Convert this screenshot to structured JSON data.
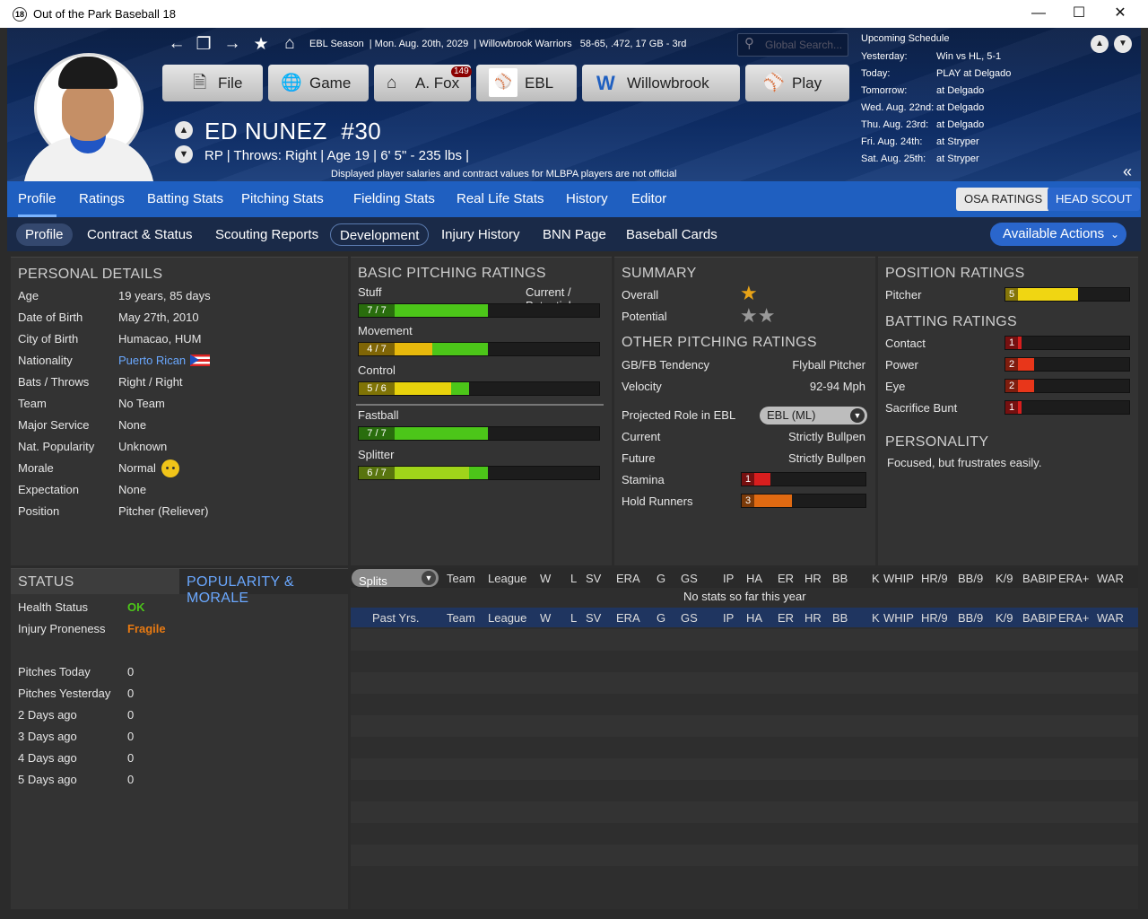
{
  "window": {
    "title": "Out of the Park Baseball 18",
    "icon_text": "18",
    "minimize": "—",
    "maximize": "☐",
    "close": "✕"
  },
  "topline": {
    "season": "EBL Season",
    "date": "Mon. Aug. 20th, 2029",
    "team": "Willowbrook Warriors",
    "record": "58-65, .472, 17 GB - 3rd"
  },
  "search": {
    "placeholder": "Global Search..."
  },
  "menu": [
    {
      "label": "File",
      "icon": "file-icon"
    },
    {
      "label": "Game",
      "icon": "globe-icon"
    },
    {
      "label": "A. Fox",
      "icon": "home-icon",
      "badge": "149"
    },
    {
      "label": "EBL",
      "icon": "league-logo"
    },
    {
      "label": "Willowbrook",
      "icon": "team-logo"
    },
    {
      "label": "Play",
      "icon": "baseball-icon"
    }
  ],
  "player": {
    "name": "ED NUNEZ",
    "number": "#30",
    "info": "RP | Throws: Right  |  Age 19  |  6' 5\" - 235 lbs  |",
    "disclaimer": "Displayed player salaries and contract values for MLBPA players are not official"
  },
  "schedule": {
    "title": "Upcoming Schedule",
    "rows": [
      {
        "day": "Yesterday:",
        "value": "Win vs HL, 5-1"
      },
      {
        "day": "Today:",
        "value": "PLAY at Delgado"
      },
      {
        "day": "Tomorrow:",
        "value": "at Delgado"
      },
      {
        "day": "Wed. Aug. 22nd:",
        "value": "at Delgado"
      },
      {
        "day": "Thu. Aug. 23rd:",
        "value": "at Delgado"
      },
      {
        "day": "Fri. Aug. 24th:",
        "value": "at Stryper"
      },
      {
        "day": "Sat. Aug. 25th:",
        "value": "at Stryper"
      }
    ]
  },
  "tabs1": [
    "Profile",
    "Ratings",
    "Batting Stats",
    "Pitching Stats",
    "Fielding Stats",
    "Real Life Stats",
    "History",
    "Editor"
  ],
  "tabs1_right": {
    "osa": "OSA RATINGS",
    "scout": "HEAD SCOUT"
  },
  "tabs2": [
    "Profile",
    "Contract & Status",
    "Scouting Reports",
    "Development",
    "Injury History",
    "BNN Page",
    "Baseball Cards"
  ],
  "available_actions": "Available Actions",
  "personal": {
    "title": "PERSONAL DETAILS",
    "rows": [
      {
        "k": "Age",
        "v": "19 years, 85 days"
      },
      {
        "k": "Date of Birth",
        "v": "May 27th, 2010"
      },
      {
        "k": "City of Birth",
        "v": "Humacao, HUM"
      },
      {
        "k": "Nationality",
        "v": "Puerto Rican"
      },
      {
        "k": "Bats / Throws",
        "v": "Right / Right"
      },
      {
        "k": "Team",
        "v": "No Team"
      },
      {
        "k": "Major Service",
        "v": "None"
      },
      {
        "k": "Nat. Popularity",
        "v": "Unknown"
      },
      {
        "k": "Morale",
        "v": "Normal"
      },
      {
        "k": "Expectation",
        "v": "None"
      },
      {
        "k": "Position",
        "v": "Pitcher (Reliever)"
      }
    ]
  },
  "basic_pitching": {
    "title": "BASIC PITCHING RATINGS",
    "legend": "Current / Potential",
    "rows": [
      {
        "name": "Stuff",
        "text": "7 / 7",
        "current": 7,
        "potential": 7,
        "color": "#4cc619"
      },
      {
        "name": "Movement",
        "text": "4 / 7",
        "current": 4,
        "potential": 7,
        "color": "#e8b90c"
      },
      {
        "name": "Control",
        "text": "5 / 6",
        "current": 5,
        "potential": 6,
        "color": "#e8d20c"
      },
      {
        "name": "Fastball",
        "text": "7 / 7",
        "current": 7,
        "potential": 7,
        "color": "#4cc619"
      },
      {
        "name": "Splitter",
        "text": "6 / 7",
        "current": 6,
        "potential": 7,
        "color": "#a0d41a"
      }
    ]
  },
  "summary": {
    "title": "SUMMARY",
    "overall_label": "Overall",
    "overall_stars": "★",
    "potential_label": "Potential",
    "potential_stars": "★★"
  },
  "other_pitching": {
    "title": "OTHER PITCHING RATINGS",
    "rows": [
      {
        "k": "GB/FB Tendency",
        "v": "Flyball Pitcher"
      },
      {
        "k": "Velocity",
        "v": "92-94 Mph"
      }
    ],
    "role_label": "Projected Role in EBL",
    "role_select": "EBL (ML)",
    "current_label": "Current",
    "current_value": "Strictly Bullpen",
    "future_label": "Future",
    "future_value": "Strictly Bullpen",
    "stamina_label": "Stamina",
    "stamina": "1",
    "hold_label": "Hold Runners",
    "hold": "3"
  },
  "position_ratings": {
    "title": "POSITION RATINGS",
    "label": "Pitcher",
    "value": "5"
  },
  "batting_ratings": {
    "title": "BATTING RATINGS",
    "rows": [
      {
        "k": "Contact",
        "v": "1"
      },
      {
        "k": "Power",
        "v": "2"
      },
      {
        "k": "Eye",
        "v": "2"
      },
      {
        "k": "Sacrifice Bunt",
        "v": "1"
      }
    ]
  },
  "personality": {
    "title": "PERSONALITY",
    "text": "Focused, but frustrates easily."
  },
  "status": {
    "tab1": "STATUS",
    "tab2": "POPULARITY & MORALE",
    "health_label": "Health Status",
    "health": "OK",
    "injury_label": "Injury Proneness",
    "injury": "Fragile",
    "rows": [
      {
        "k": "Pitches Today",
        "v": "0"
      },
      {
        "k": "Pitches Yesterday",
        "v": "0"
      },
      {
        "k": "2 Days ago",
        "v": "0"
      },
      {
        "k": "3 Days ago",
        "v": "0"
      },
      {
        "k": "4 Days ago",
        "v": "0"
      },
      {
        "k": "5 Days ago",
        "v": "0"
      }
    ]
  },
  "stats": {
    "splits": "Splits",
    "cols": [
      "Team",
      "League",
      "W",
      "L",
      "SV",
      "ERA",
      "G",
      "GS",
      "IP",
      "HA",
      "ER",
      "HR",
      "BB",
      "K",
      "WHIP",
      "HR/9",
      "BB/9",
      "K/9",
      "BABIP",
      "ERA+",
      "WAR"
    ],
    "empty": "No stats so far this year",
    "past": "Past Yrs."
  },
  "colors": {
    "accent": "#1f5fc0",
    "green": "#4cc619",
    "red": "#d81e1e",
    "orange": "#e06a12",
    "yellow": "#f0d612"
  }
}
